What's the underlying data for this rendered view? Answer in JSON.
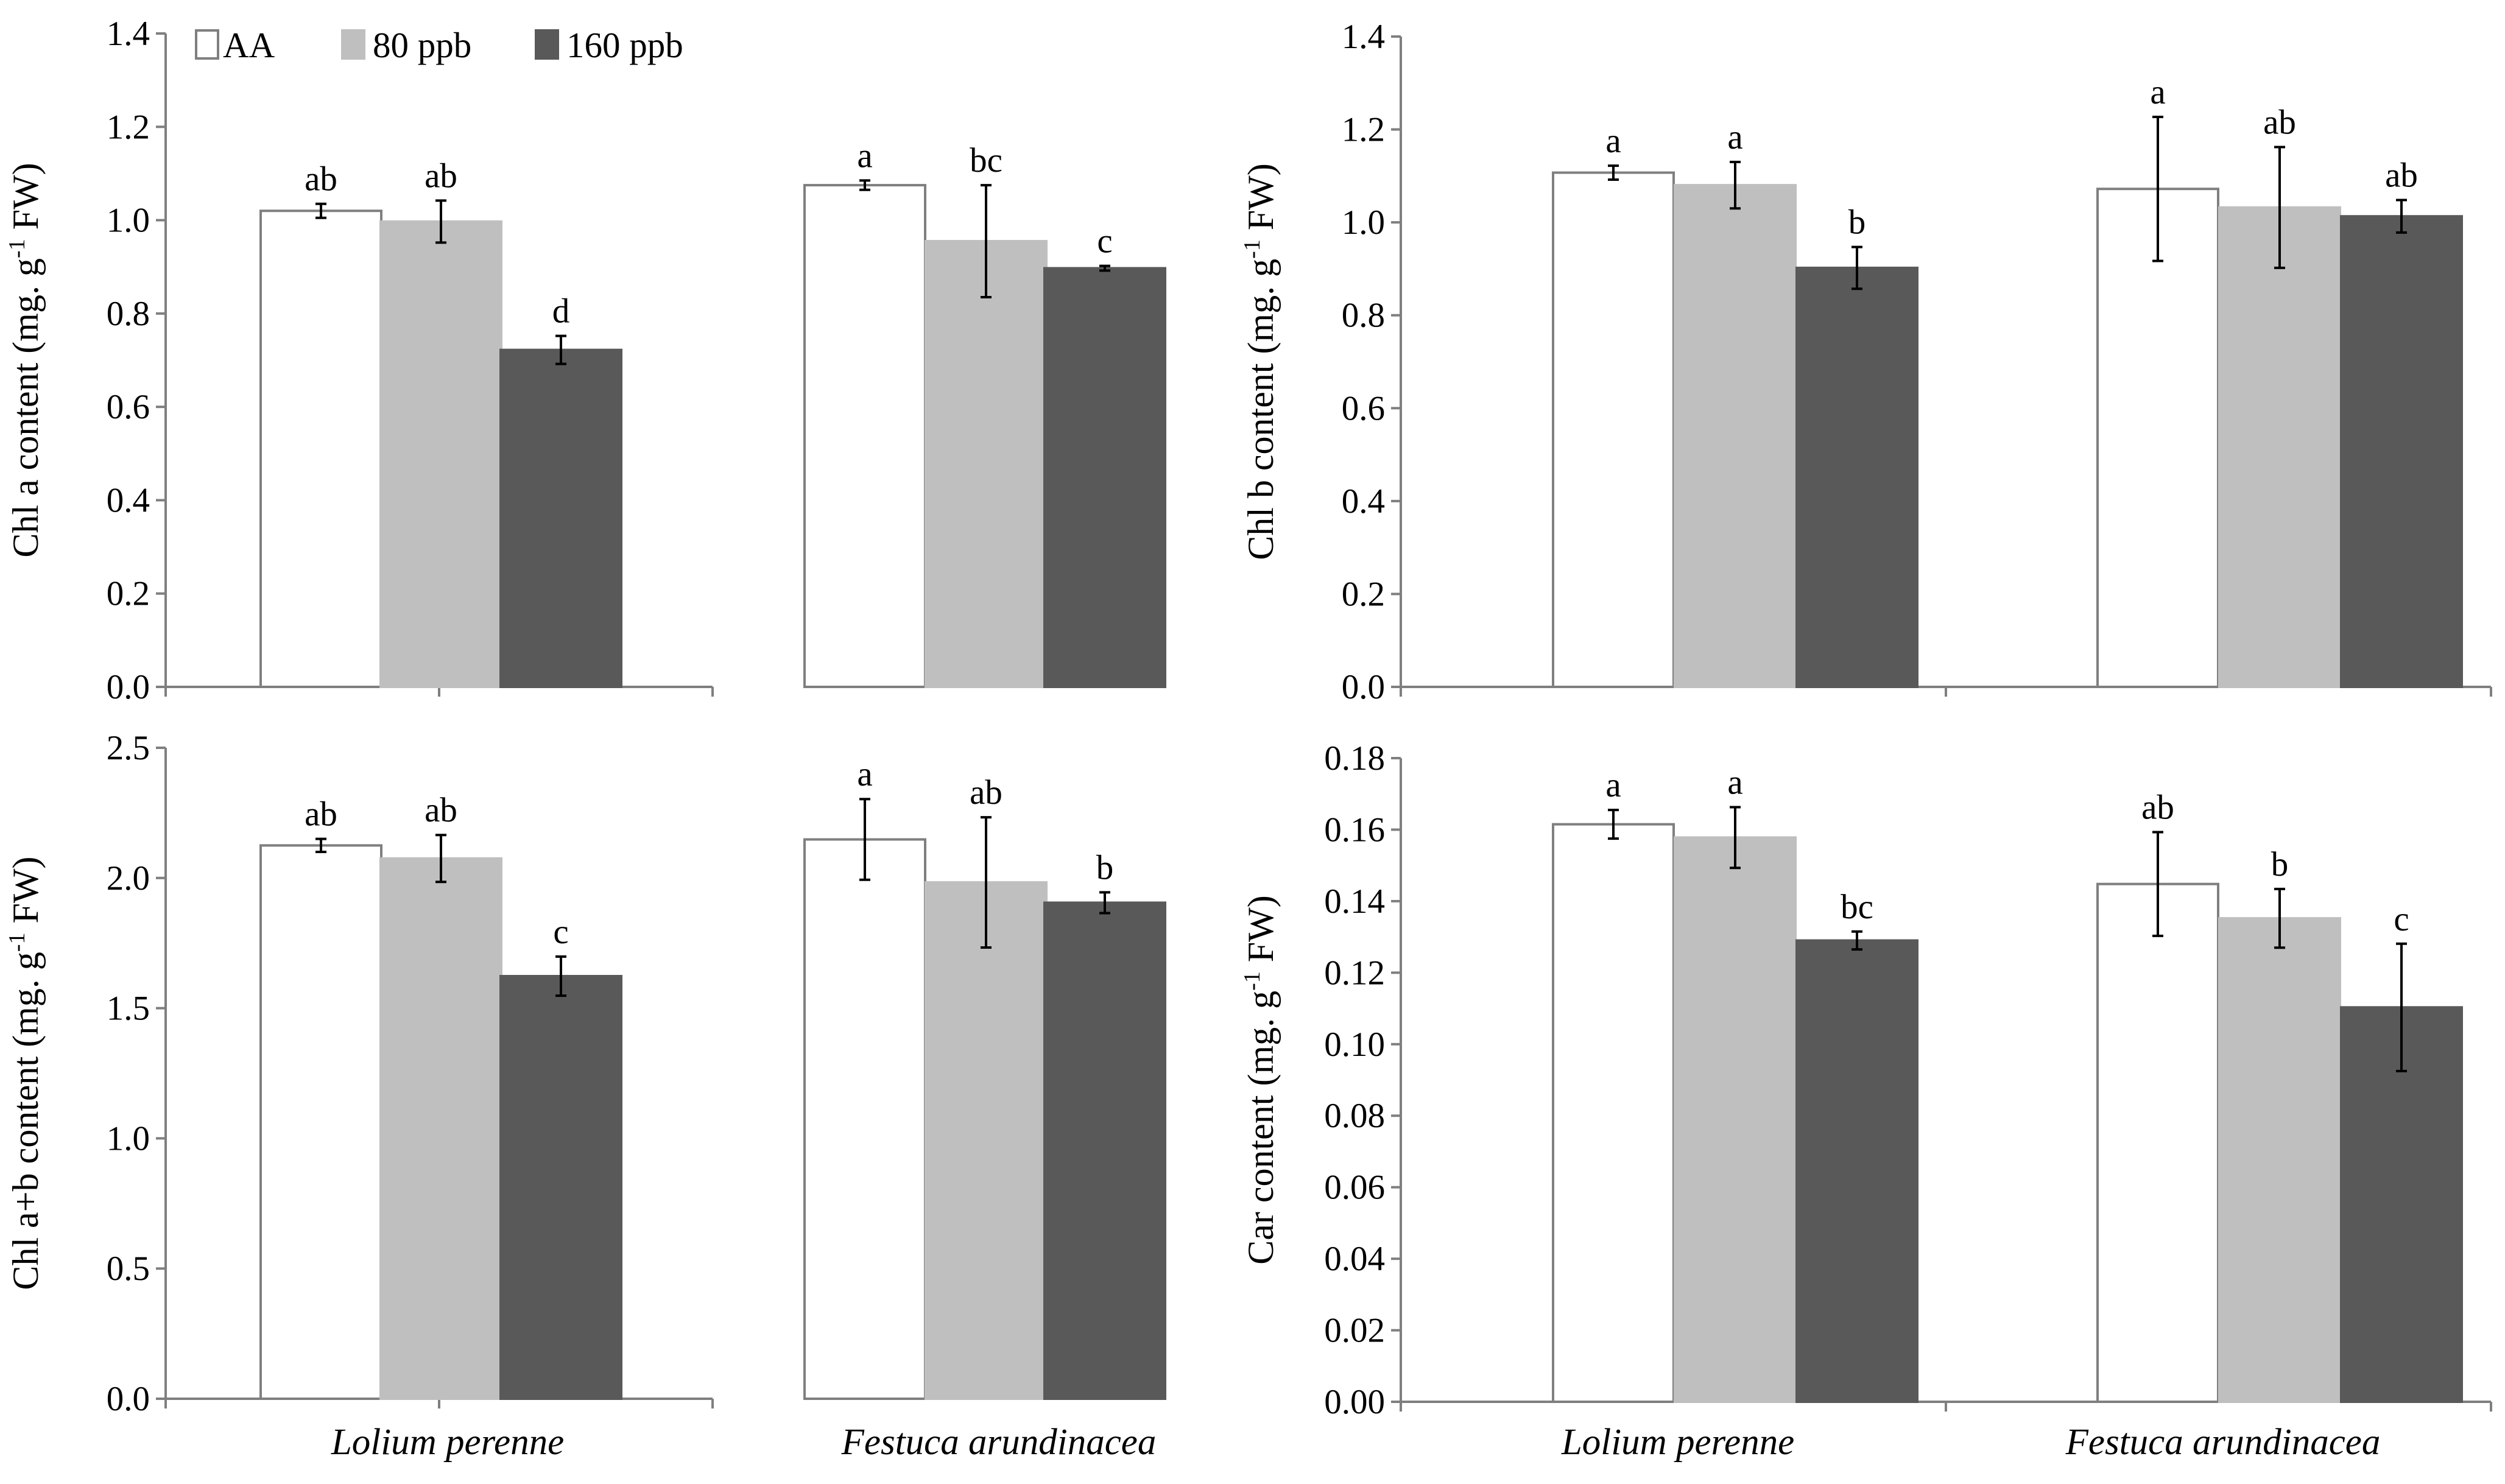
{
  "colors": {
    "AA": "#ffffff",
    "AA_stroke": "#7f7f7f",
    "80 ppb": "#bfbfbf",
    "160 ppb": "#595959"
  },
  "legend": [
    "AA",
    "80 ppb",
    "160 ppb"
  ],
  "chart_data": [
    {
      "type": "bar",
      "ylabel_main": "Chl a content (mg. g",
      "ylabel_sup": "-1",
      "ylabel_end": " FW)",
      "ylim": [
        0,
        1.4
      ],
      "yticks": [
        "0.0",
        "0.2",
        "0.4",
        "0.6",
        "0.8",
        "1.0",
        "1.2",
        "1.4"
      ],
      "categories": [
        "Lolium perenne",
        "Festuca arundinacea"
      ],
      "series": [
        {
          "name": "AA",
          "values": [
            1.02,
            1.075
          ],
          "errors": [
            0.015,
            0.01
          ],
          "sig": [
            "ab",
            "a"
          ]
        },
        {
          "name": "80 ppb",
          "values": [
            0.997,
            0.955
          ],
          "errors": [
            0.045,
            0.12
          ],
          "sig": [
            "ab",
            "bc"
          ]
        },
        {
          "name": "160 ppb",
          "values": [
            0.722,
            0.897
          ],
          "errors": [
            0.03,
            0.005
          ],
          "sig": [
            "d",
            "c"
          ]
        }
      ]
    },
    {
      "type": "bar",
      "ylabel_main": "Chl b content (mg. g",
      "ylabel_sup": "-1",
      "ylabel_end": " FW)",
      "ylim": [
        0,
        1.4
      ],
      "yticks": [
        "0.0",
        "0.2",
        "0.4",
        "0.6",
        "0.8",
        "1.0",
        "1.2",
        "1.4"
      ],
      "categories": [
        "Lolium perenne",
        "Festuca arundinacea"
      ],
      "series": [
        {
          "name": "AA",
          "values": [
            1.107,
            1.072
          ],
          "errors": [
            0.015,
            0.155
          ],
          "sig": [
            "a",
            "a"
          ]
        },
        {
          "name": "80 ppb",
          "values": [
            1.08,
            1.032
          ],
          "errors": [
            0.05,
            0.13
          ],
          "sig": [
            "a",
            "ab"
          ]
        },
        {
          "name": "160 ppb",
          "values": [
            0.902,
            1.013
          ],
          "errors": [
            0.045,
            0.035
          ],
          "sig": [
            "b",
            "ab"
          ]
        }
      ]
    },
    {
      "type": "bar",
      "ylabel_main": "Chl a+b content (mg. g",
      "ylabel_sup": "-1",
      "ylabel_end": " FW)",
      "ylim": [
        0,
        2.5
      ],
      "yticks": [
        "0.0",
        "0.5",
        "1.0",
        "1.5",
        "2.0",
        "2.5"
      ],
      "categories": [
        "Lolium perenne",
        "Festuca arundinacea"
      ],
      "series": [
        {
          "name": "AA",
          "values": [
            2.125,
            2.148
          ],
          "errors": [
            0.025,
            0.155
          ],
          "sig": [
            "ab",
            "a"
          ]
        },
        {
          "name": "80 ppb",
          "values": [
            2.075,
            1.983
          ],
          "errors": [
            0.09,
            0.25
          ],
          "sig": [
            "ab",
            "ab"
          ]
        },
        {
          "name": "160 ppb",
          "values": [
            1.623,
            1.905
          ],
          "errors": [
            0.075,
            0.04
          ],
          "sig": [
            "c",
            "b"
          ]
        }
      ]
    },
    {
      "type": "bar",
      "ylabel_main": "Car content (mg. g",
      "ylabel_sup": "-1",
      "ylabel_end": " FW)",
      "ylim": [
        0,
        0.18
      ],
      "yticks": [
        "0.00",
        "0.02",
        "0.04",
        "0.06",
        "0.08",
        "0.10",
        "0.12",
        "0.14",
        "0.16",
        "0.18"
      ],
      "categories": [
        "Lolium perenne",
        "Festuca arundinacea"
      ],
      "series": [
        {
          "name": "AA",
          "values": [
            0.1615,
            0.1448
          ],
          "errors": [
            0.004,
            0.0145
          ],
          "sig": [
            "a",
            "ab"
          ]
        },
        {
          "name": "80 ppb",
          "values": [
            0.1578,
            0.1352
          ],
          "errors": [
            0.0085,
            0.0082
          ],
          "sig": [
            "a",
            "b"
          ]
        },
        {
          "name": "160 ppb",
          "values": [
            0.129,
            0.1103
          ],
          "errors": [
            0.0025,
            0.0178
          ],
          "sig": [
            "bc",
            "c"
          ]
        }
      ]
    }
  ]
}
